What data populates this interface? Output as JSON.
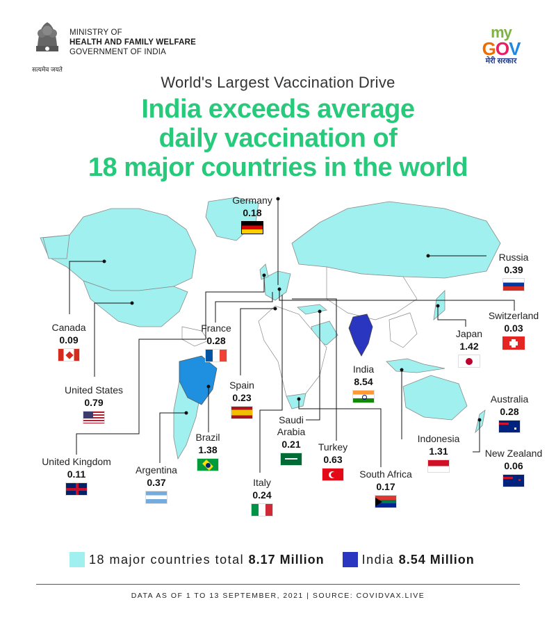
{
  "header": {
    "ministry_line1": "MINISTRY OF",
    "ministry_line2": "HEALTH AND FAMILY WELFARE",
    "ministry_line3": "GOVERNMENT OF INDIA",
    "emblem_caption": "सत्यमेव जयते",
    "mygov_my": "my",
    "mygov_g": "G",
    "mygov_o": "O",
    "mygov_v": "V",
    "mygov_tag": "मेरी सरकार"
  },
  "subtitle": "World's Largest Vaccination Drive",
  "title_lines": [
    "India exceeds average",
    "daily vaccination of",
    "18 major countries in the world"
  ],
  "colors": {
    "title": "#27c97a",
    "countries": "#9ff0ee",
    "india": "#2b36c0",
    "brazil": "#1f8fe0",
    "lines": "#111111"
  },
  "countries": {
    "germany": {
      "name": "Germany",
      "value": "0.18"
    },
    "russia": {
      "name": "Russia",
      "value": "0.39"
    },
    "switzerland": {
      "name": "Switzerland",
      "value": "0.03"
    },
    "japan": {
      "name": "Japan",
      "value": "1.42"
    },
    "canada": {
      "name": "Canada",
      "value": "0.09"
    },
    "france": {
      "name": "France",
      "value": "0.28"
    },
    "india": {
      "name": "India",
      "value": "8.54"
    },
    "united_states": {
      "name": "United States",
      "value": "0.79"
    },
    "spain": {
      "name": "Spain",
      "value": "0.23"
    },
    "australia": {
      "name": "Australia",
      "value": "0.28"
    },
    "saudi_arabia": {
      "name1": "Saudi",
      "name2": "Arabia",
      "value": "0.21"
    },
    "brazil": {
      "name": "Brazil",
      "value": "1.38"
    },
    "indonesia": {
      "name": "Indonesia",
      "value": "1.31"
    },
    "new_zealand": {
      "name": "New Zealand",
      "value": "0.06"
    },
    "turkey": {
      "name": "Turkey",
      "value": "0.63"
    },
    "united_kingdom": {
      "name": "United Kingdom",
      "value": "0.11"
    },
    "argentina": {
      "name": "Argentina",
      "value": "0.37"
    },
    "south_africa": {
      "name": "South Africa",
      "value": "0.17"
    },
    "italy": {
      "name": "Italy",
      "value": "0.24"
    }
  },
  "legend": {
    "others_label": "18 major countries total",
    "others_value": "8.17 Million",
    "india_label": "India",
    "india_value": "8.54 Million"
  },
  "footer": "DATA AS OF 1 TO 13 SEPTEMBER, 2021  |  SOURCE: COVIDVAX.LIVE"
}
